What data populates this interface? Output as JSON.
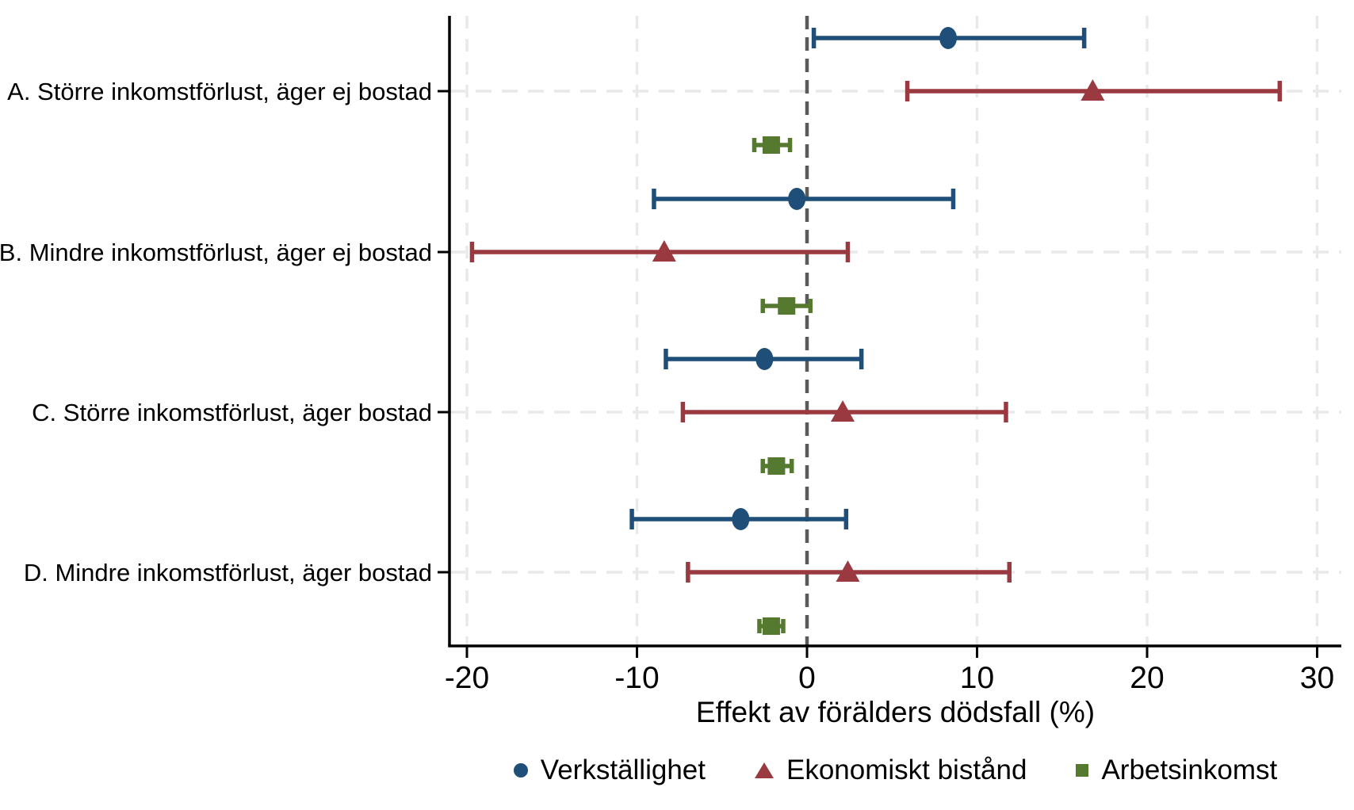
{
  "chart_data": {
    "type": "scatter",
    "subtype": "coefficient-forest-plot",
    "title": "",
    "xlabel": "Effekt av förälders dödsfall (%)",
    "ylabel": "",
    "xlim": [
      -21,
      31.4
    ],
    "xticks": [
      -20,
      -10,
      0,
      10,
      20,
      30
    ],
    "zero_reference_line": 0,
    "grid": "dashed-light",
    "legend_position": "bottom",
    "groups": [
      "A. Större inkomstförlust, äger ej bostad",
      "B. Mindre inkomstförlust, äger ej bostad",
      "C. Större inkomstförlust, äger bostad",
      "D. Mindre inkomstförlust, äger bostad"
    ],
    "series": [
      {
        "name": "Verkställighet",
        "marker": "circle",
        "color": "#1f4e79",
        "values": [
          8.3,
          -0.6,
          -2.5,
          -3.9
        ],
        "ci_low": [
          0.4,
          -9.0,
          -8.3,
          -10.3
        ],
        "ci_high": [
          16.3,
          8.6,
          3.2,
          2.3
        ]
      },
      {
        "name": "Ekonomiskt bistånd",
        "marker": "triangle",
        "color": "#9a3a40",
        "values": [
          16.8,
          -8.4,
          2.1,
          2.4
        ],
        "ci_low": [
          5.9,
          -19.7,
          -7.3,
          -7.0
        ],
        "ci_high": [
          27.8,
          2.4,
          11.7,
          11.9
        ]
      },
      {
        "name": "Arbetsinkomst",
        "marker": "square",
        "color": "#557a2f",
        "values": [
          -2.1,
          -1.2,
          -1.8,
          -2.1
        ],
        "ci_low": [
          -3.1,
          -2.6,
          -2.6,
          -2.8
        ],
        "ci_high": [
          -1.0,
          0.2,
          -0.9,
          -1.4
        ]
      }
    ],
    "colors": {
      "axis": "#000000",
      "zero_line": "#5a5a5a",
      "gridline": "#e9e9e9",
      "background": "#ffffff"
    }
  },
  "legend": [
    {
      "label": "Verkställighet"
    },
    {
      "label": "Ekonomiskt bistånd"
    },
    {
      "label": "Arbetsinkomst"
    }
  ]
}
